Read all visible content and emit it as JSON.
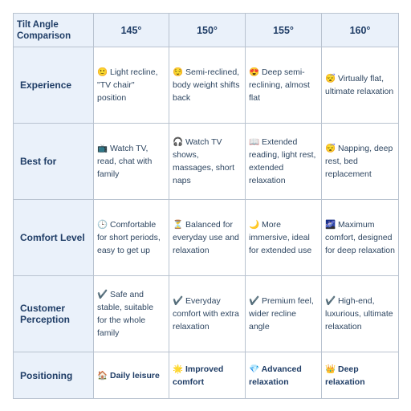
{
  "header": {
    "corner": "Tilt Angle Comparison",
    "columns": [
      "145°",
      "150°",
      "155°",
      "160°"
    ]
  },
  "rows": [
    {
      "label": "Experience",
      "cells": [
        "🙂 Light recline, \"TV chair\" position",
        "😌 Semi-reclined, body weight shifts back",
        "😍 Deep semi-reclining, almost flat",
        "😴 Virtually flat, ultimate relaxation"
      ]
    },
    {
      "label": "Best for",
      "cells": [
        "📺 Watch TV, read, chat with family",
        "🎧 Watch TV shows, massages, short naps",
        "📖 Extended reading, light rest, extended relaxation",
        "😴 Napping, deep rest, bed replacement"
      ]
    },
    {
      "label": "Comfort Level",
      "cells": [
        "🕒 Comfortable for short periods, easy to get up",
        "⏳ Balanced for everyday use and relaxation",
        "🌙 More immersive, ideal for extended use",
        "🌌 Maximum comfort, designed for deep relaxation"
      ]
    },
    {
      "label": "Customer Perception",
      "cells": [
        "✔️ Safe and stable, suitable for the whole family",
        "✔️ Everyday comfort with extra relaxation",
        "✔️ Premium feel, wider recline angle",
        "✔️ High-end, luxurious, ultimate relaxation"
      ]
    },
    {
      "label": "Positioning",
      "cells": [
        "🏠 Daily leisure",
        "🌟 Improved comfort",
        "💎 Advanced relaxation",
        "👑 Deep relaxation"
      ]
    }
  ]
}
